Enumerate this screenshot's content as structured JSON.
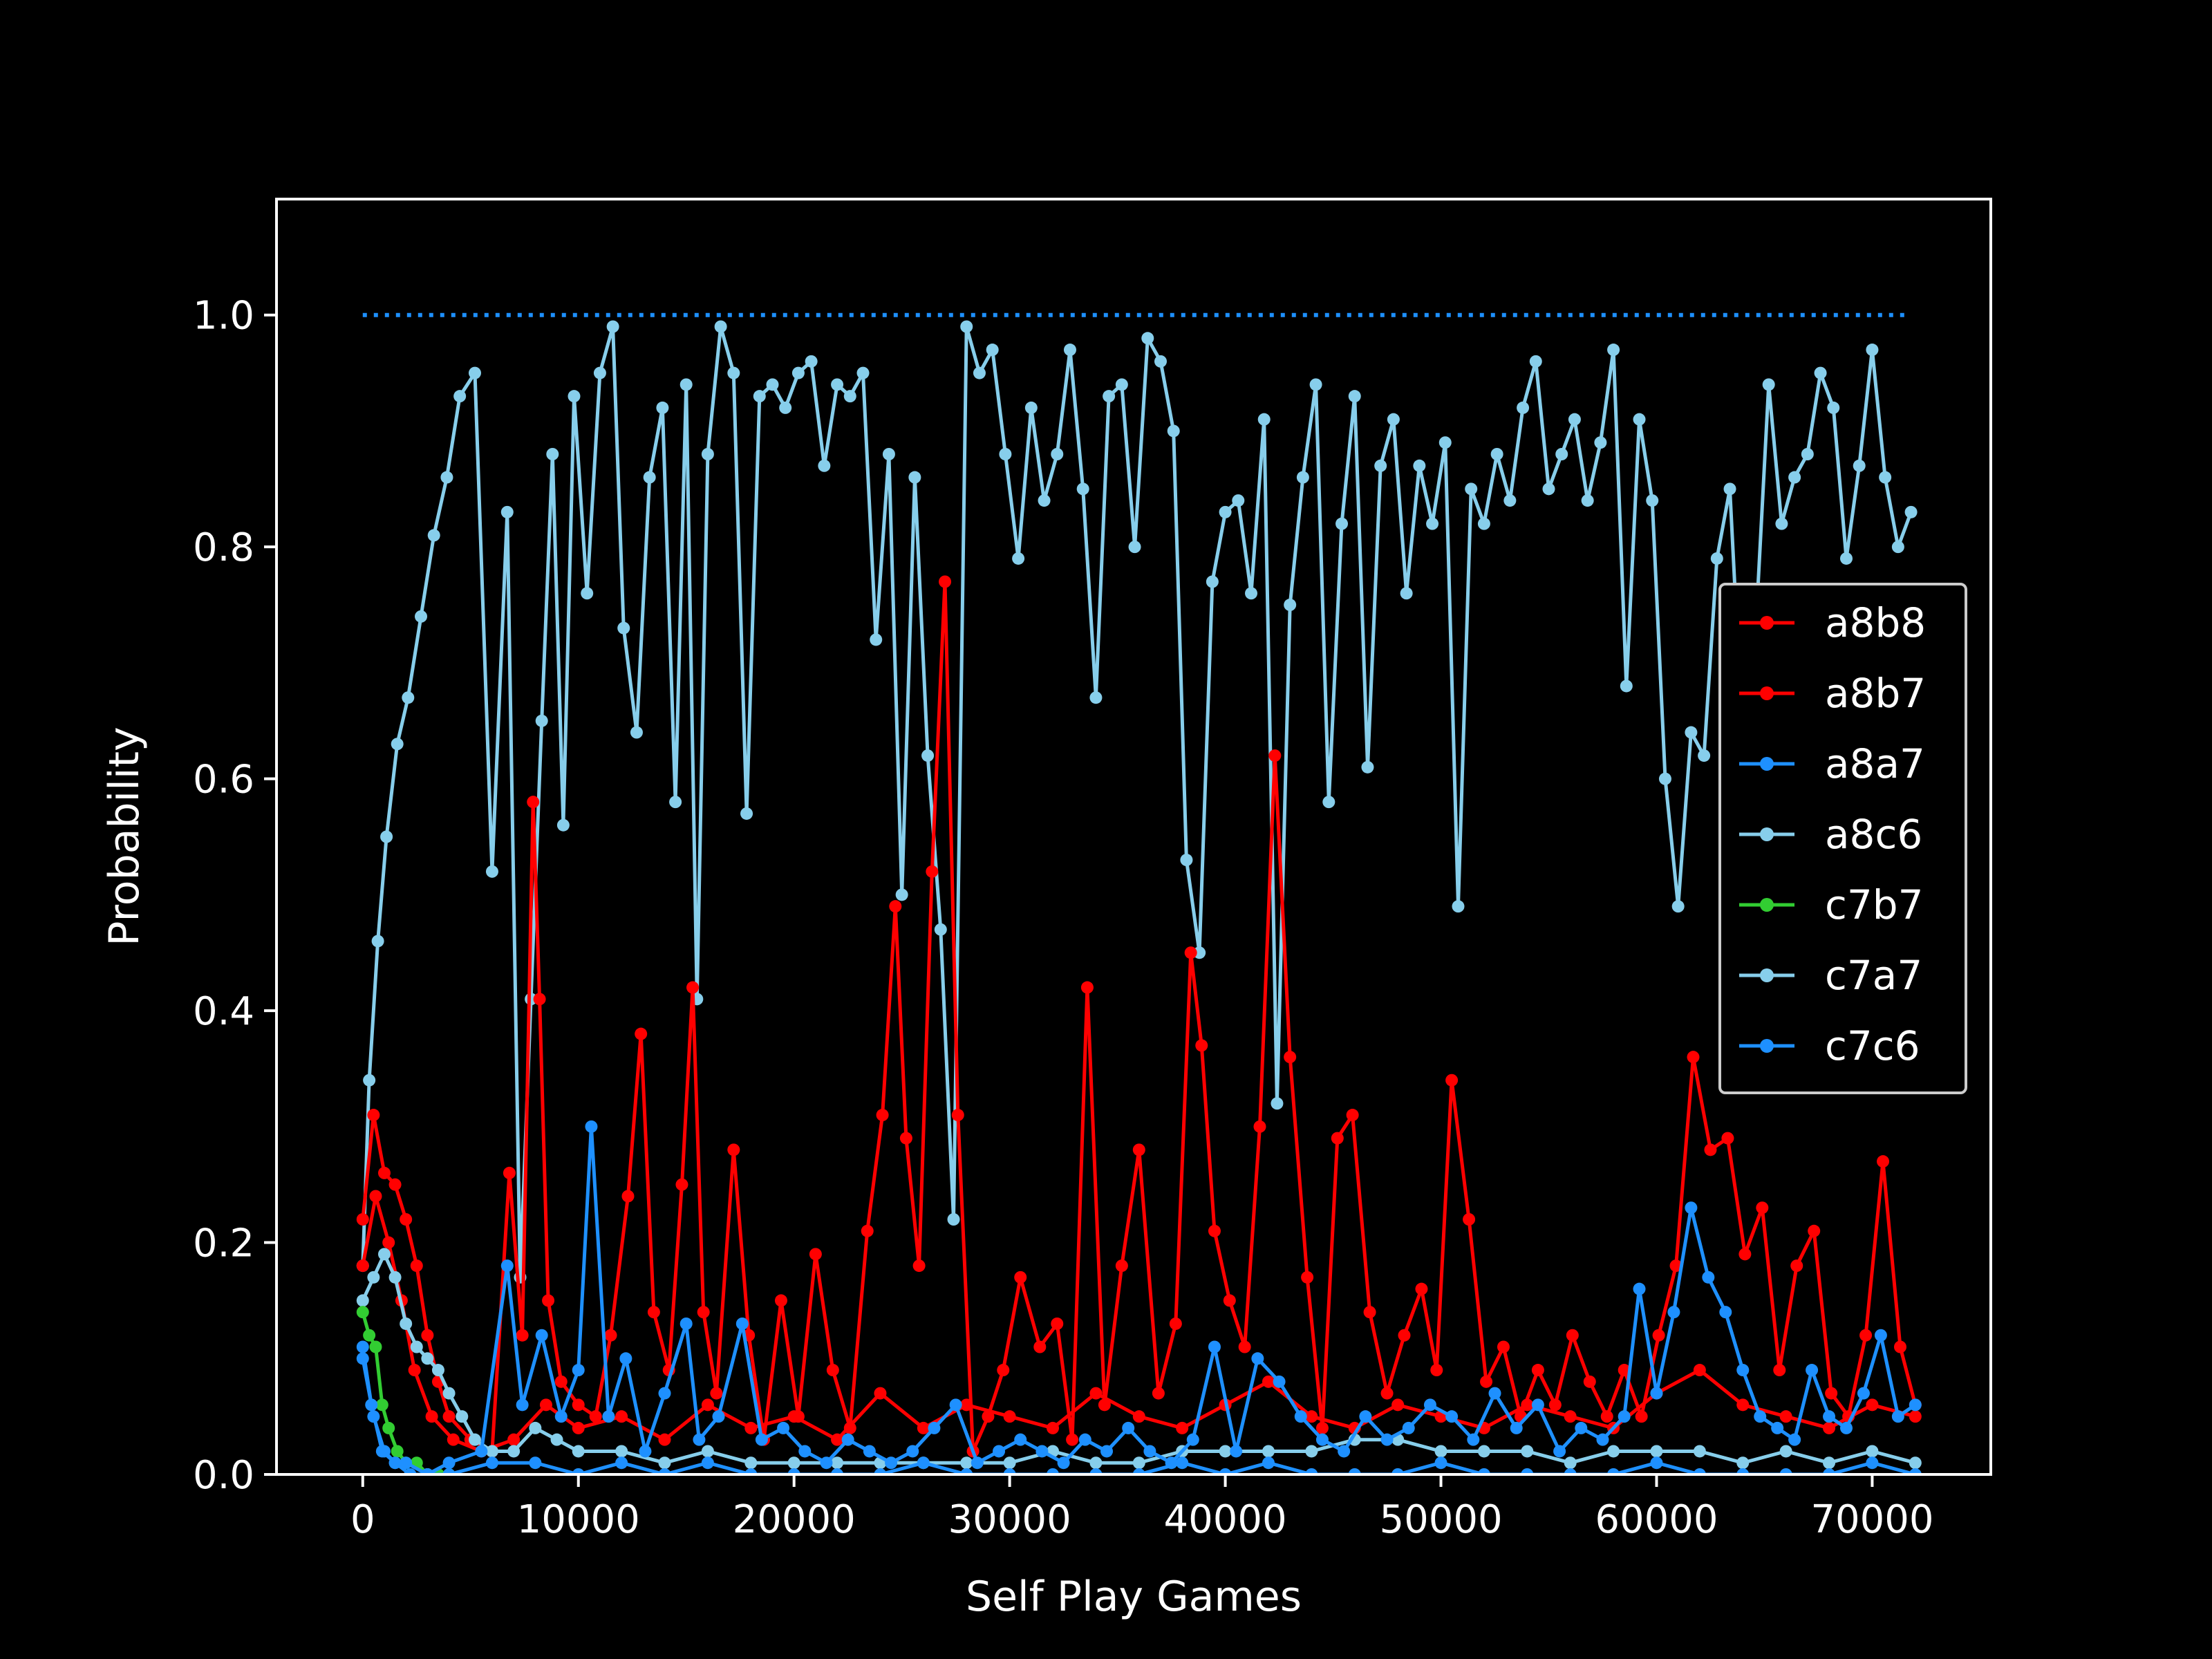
{
  "chart_data": {
    "type": "line",
    "title": "",
    "xlabel": "Self Play Games",
    "ylabel": "Probability",
    "xlim": [
      -4000,
      75500
    ],
    "ylim": [
      0,
      1.1
    ],
    "xticks": [
      0,
      10000,
      20000,
      30000,
      40000,
      50000,
      60000,
      70000
    ],
    "yticks": [
      0.0,
      0.2,
      0.4,
      0.6,
      0.8,
      1.0
    ],
    "xtick_labels": [
      "0",
      "10000",
      "20000",
      "30000",
      "40000",
      "50000",
      "60000",
      "70000"
    ],
    "ytick_labels": [
      "0.0",
      "0.2",
      "0.4",
      "0.6",
      "0.8",
      "1.0"
    ],
    "reference_line": {
      "y": 1.0,
      "x_range": [
        0,
        71500
      ],
      "style": "dotted",
      "color": "#1e90ff"
    },
    "background": "#000000",
    "foreground": "#ffffff",
    "legend": {
      "placement": "center-right",
      "entries": [
        "a8b8",
        "a8b7",
        "a8a7",
        "a8c6",
        "c7b7",
        "c7a7",
        "c7c6"
      ]
    },
    "series": [
      {
        "name": "a8b8",
        "color": "#ff0000",
        "x": [
          0,
          500,
          1000,
          1500,
          2000,
          2500,
          3000,
          3500,
          4000,
          5000,
          6000,
          6800,
          7400,
          7900,
          8200,
          8600,
          9200,
          10000,
          10800,
          11500,
          12300,
          12900,
          13500,
          14200,
          14800,
          15300,
          15800,
          16400,
          17200,
          17900,
          18600,
          19400,
          20200,
          21000,
          21800,
          22600,
          23400,
          24100,
          24700,
          25200,
          25800,
          26400,
          27000,
          27600,
          28300,
          29000,
          29700,
          30500,
          31400,
          32200,
          32900,
          33600,
          34400,
          35200,
          36000,
          36900,
          37700,
          38400,
          38900,
          39500,
          40200,
          40900,
          41600,
          42300,
          43000,
          43800,
          44500,
          45200,
          45900,
          46700,
          47500,
          48300,
          49100,
          49800,
          50500,
          51300,
          52100,
          52900,
          53700,
          54500,
          55300,
          56100,
          56900,
          57700,
          58500,
          59300,
          60100,
          60900,
          61700,
          62500,
          63300,
          64100,
          64900,
          65700,
          66500,
          67300,
          68100,
          68900,
          69700,
          70500,
          71300,
          72000
        ],
        "y": [
          0.22,
          0.31,
          0.26,
          0.25,
          0.22,
          0.18,
          0.12,
          0.08,
          0.05,
          0.03,
          0.02,
          0.26,
          0.12,
          0.58,
          0.41,
          0.15,
          0.08,
          0.06,
          0.05,
          0.12,
          0.24,
          0.38,
          0.14,
          0.09,
          0.25,
          0.42,
          0.14,
          0.07,
          0.28,
          0.12,
          0.03,
          0.15,
          0.05,
          0.19,
          0.09,
          0.04,
          0.21,
          0.31,
          0.49,
          0.29,
          0.18,
          0.52,
          0.77,
          0.31,
          0.02,
          0.05,
          0.09,
          0.17,
          0.11,
          0.13,
          0.03,
          0.42,
          0.06,
          0.18,
          0.28,
          0.07,
          0.13,
          0.45,
          0.37,
          0.21,
          0.15,
          0.11,
          0.3,
          0.62,
          0.36,
          0.17,
          0.04,
          0.29,
          0.31,
          0.14,
          0.07,
          0.12,
          0.16,
          0.09,
          0.34,
          0.22,
          0.08,
          0.11,
          0.05,
          0.09,
          0.06,
          0.12,
          0.08,
          0.05,
          0.09,
          0.05,
          0.12,
          0.18,
          0.36,
          0.28,
          0.29,
          0.19,
          0.23,
          0.09,
          0.18,
          0.21,
          0.07,
          0.05,
          0.12,
          0.27,
          0.11,
          0.06
        ]
      },
      {
        "name": "a8b7",
        "color": "#ff0000",
        "x": [
          0,
          600,
          1200,
          1800,
          2400,
          3200,
          4200,
          5500,
          7000,
          8500,
          10000,
          12000,
          14000,
          16000,
          18000,
          20000,
          22000,
          24000,
          26000,
          28000,
          30000,
          32000,
          34000,
          36000,
          38000,
          40000,
          42000,
          44000,
          46000,
          48000,
          50000,
          52000,
          54000,
          56000,
          58000,
          60000,
          62000,
          64000,
          66000,
          68000,
          70000,
          72000
        ],
        "y": [
          0.18,
          0.24,
          0.2,
          0.15,
          0.09,
          0.05,
          0.03,
          0.02,
          0.03,
          0.06,
          0.04,
          0.05,
          0.03,
          0.06,
          0.04,
          0.05,
          0.03,
          0.07,
          0.04,
          0.06,
          0.05,
          0.04,
          0.07,
          0.05,
          0.04,
          0.06,
          0.08,
          0.05,
          0.04,
          0.06,
          0.05,
          0.04,
          0.06,
          0.05,
          0.04,
          0.07,
          0.09,
          0.06,
          0.05,
          0.04,
          0.06,
          0.05
        ]
      },
      {
        "name": "a8a7",
        "color": "#1e90ff",
        "x": [
          0,
          400,
          900,
          1500,
          2200,
          3000,
          4000,
          5500,
          6700,
          7400,
          8300,
          9200,
          10000,
          10600,
          11400,
          12200,
          13100,
          14000,
          15000,
          15600,
          16500,
          17600,
          18500,
          19500,
          20500,
          21500,
          22500,
          23500,
          24500,
          25500,
          26500,
          27500,
          28500,
          29500,
          30500,
          31500,
          32500,
          33500,
          34500,
          35500,
          36500,
          37500,
          38500,
          39500,
          40500,
          41500,
          42500,
          43500,
          44500,
          45500,
          46500,
          47500,
          48500,
          49500,
          50500,
          51500,
          52500,
          53500,
          54500,
          55500,
          56500,
          57500,
          58500,
          59200,
          60000,
          60800,
          61600,
          62400,
          63200,
          64000,
          64800,
          65600,
          66400,
          67200,
          68000,
          68800,
          69600,
          70400,
          71200,
          72000
        ],
        "y": [
          0.11,
          0.06,
          0.02,
          0.01,
          0.0,
          0.0,
          0.01,
          0.02,
          0.18,
          0.06,
          0.12,
          0.05,
          0.09,
          0.3,
          0.05,
          0.1,
          0.02,
          0.07,
          0.13,
          0.03,
          0.05,
          0.13,
          0.03,
          0.04,
          0.02,
          0.01,
          0.03,
          0.02,
          0.01,
          0.02,
          0.04,
          0.06,
          0.01,
          0.02,
          0.03,
          0.02,
          0.01,
          0.03,
          0.02,
          0.04,
          0.02,
          0.01,
          0.03,
          0.11,
          0.02,
          0.1,
          0.08,
          0.05,
          0.03,
          0.02,
          0.05,
          0.03,
          0.04,
          0.06,
          0.05,
          0.03,
          0.07,
          0.04,
          0.06,
          0.02,
          0.04,
          0.03,
          0.05,
          0.16,
          0.07,
          0.14,
          0.23,
          0.17,
          0.14,
          0.09,
          0.05,
          0.04,
          0.03,
          0.09,
          0.05,
          0.04,
          0.07,
          0.12,
          0.05,
          0.06
        ]
      },
      {
        "name": "a8c6",
        "color": "#87ceeb",
        "x": [
          0,
          300,
          700,
          1100,
          1600,
          2100,
          2700,
          3300,
          3900,
          4500,
          5200,
          6000,
          6700,
          7300,
          7800,
          8300,
          8800,
          9300,
          9800,
          10400,
          11000,
          11600,
          12100,
          12700,
          13300,
          13900,
          14500,
          15000,
          15500,
          16000,
          16600,
          17200,
          17800,
          18400,
          19000,
          19600,
          20200,
          20800,
          21400,
          22000,
          22600,
          23200,
          23800,
          24400,
          25000,
          25600,
          26200,
          26800,
          27400,
          28000,
          28600,
          29200,
          29800,
          30400,
          31000,
          31600,
          32200,
          32800,
          33400,
          34000,
          34600,
          35200,
          35800,
          36400,
          37000,
          37600,
          38200,
          38800,
          39400,
          40000,
          40600,
          41200,
          41800,
          42400,
          43000,
          43600,
          44200,
          44800,
          45400,
          46000,
          46600,
          47200,
          47800,
          48400,
          49000,
          49600,
          50200,
          50800,
          51400,
          52000,
          52600,
          53200,
          53800,
          54400,
          55000,
          55600,
          56200,
          56800,
          57400,
          58000,
          58600,
          59200,
          59800,
          60400,
          61000,
          61600,
          62200,
          62800,
          63400,
          64000,
          64600,
          65200,
          65800,
          66400,
          67000,
          67600,
          68200,
          68800,
          69400,
          70000,
          70600,
          71200,
          71800
        ],
        "y": [
          0.18,
          0.34,
          0.46,
          0.55,
          0.63,
          0.67,
          0.74,
          0.81,
          0.86,
          0.93,
          0.95,
          0.52,
          0.83,
          0.17,
          0.41,
          0.65,
          0.88,
          0.56,
          0.93,
          0.76,
          0.95,
          0.99,
          0.73,
          0.64,
          0.86,
          0.92,
          0.58,
          0.94,
          0.41,
          0.88,
          0.99,
          0.95,
          0.57,
          0.93,
          0.94,
          0.92,
          0.95,
          0.96,
          0.87,
          0.94,
          0.93,
          0.95,
          0.72,
          0.88,
          0.5,
          0.86,
          0.62,
          0.47,
          0.22,
          0.99,
          0.95,
          0.97,
          0.88,
          0.79,
          0.92,
          0.84,
          0.88,
          0.97,
          0.85,
          0.67,
          0.93,
          0.94,
          0.8,
          0.98,
          0.96,
          0.9,
          0.53,
          0.45,
          0.77,
          0.83,
          0.84,
          0.76,
          0.91,
          0.32,
          0.75,
          0.86,
          0.94,
          0.58,
          0.82,
          0.93,
          0.61,
          0.87,
          0.91,
          0.76,
          0.87,
          0.82,
          0.89,
          0.49,
          0.85,
          0.82,
          0.88,
          0.84,
          0.92,
          0.96,
          0.85,
          0.88,
          0.91,
          0.84,
          0.89,
          0.97,
          0.68,
          0.91,
          0.84,
          0.6,
          0.49,
          0.64,
          0.62,
          0.79,
          0.85,
          0.63,
          0.73,
          0.94,
          0.82,
          0.86,
          0.88,
          0.95,
          0.92,
          0.79,
          0.87,
          0.97,
          0.86,
          0.8,
          0.83
        ]
      },
      {
        "name": "c7b7",
        "color": "#32cd32",
        "x": [
          0,
          300,
          600,
          900,
          1200,
          1600,
          2000,
          2500,
          3000,
          3500,
          4000
        ],
        "y": [
          0.14,
          0.12,
          0.11,
          0.06,
          0.04,
          0.02,
          0.01,
          0.01,
          0.0,
          0.0,
          0.0
        ]
      },
      {
        "name": "c7a7",
        "color": "#87ceeb",
        "x": [
          0,
          500,
          1000,
          1500,
          2000,
          2500,
          3000,
          3500,
          4000,
          4600,
          5200,
          6000,
          7000,
          8000,
          9000,
          10000,
          12000,
          14000,
          16000,
          18000,
          20000,
          22000,
          24000,
          26000,
          28000,
          30000,
          32000,
          34000,
          36000,
          38000,
          40000,
          42000,
          44000,
          46000,
          48000,
          50000,
          52000,
          54000,
          56000,
          58000,
          60000,
          62000,
          64000,
          66000,
          68000,
          70000,
          72000
        ],
        "y": [
          0.15,
          0.17,
          0.19,
          0.17,
          0.13,
          0.11,
          0.1,
          0.09,
          0.07,
          0.05,
          0.03,
          0.02,
          0.02,
          0.04,
          0.03,
          0.02,
          0.02,
          0.01,
          0.02,
          0.01,
          0.01,
          0.01,
          0.01,
          0.01,
          0.01,
          0.01,
          0.02,
          0.01,
          0.01,
          0.02,
          0.02,
          0.02,
          0.02,
          0.03,
          0.03,
          0.02,
          0.02,
          0.02,
          0.01,
          0.02,
          0.02,
          0.02,
          0.01,
          0.02,
          0.01,
          0.02,
          0.01
        ]
      },
      {
        "name": "c7c6",
        "color": "#1e90ff",
        "x": [
          0,
          500,
          1000,
          1500,
          2000,
          3000,
          4000,
          6000,
          8000,
          10000,
          12000,
          14000,
          16000,
          18000,
          20000,
          22000,
          24000,
          26000,
          28000,
          30000,
          32000,
          34000,
          36000,
          38000,
          40000,
          42000,
          44000,
          46000,
          48000,
          50000,
          52000,
          54000,
          56000,
          58000,
          60000,
          62000,
          64000,
          66000,
          68000,
          70000,
          72000
        ],
        "y": [
          0.1,
          0.05,
          0.02,
          0.01,
          0.01,
          0.0,
          0.0,
          0.01,
          0.01,
          0.0,
          0.01,
          0.0,
          0.01,
          0.0,
          0.0,
          0.0,
          0.0,
          0.01,
          0.0,
          0.0,
          0.0,
          0.0,
          0.0,
          0.01,
          0.0,
          0.01,
          0.0,
          0.0,
          0.0,
          0.01,
          0.0,
          0.0,
          0.0,
          0.0,
          0.01,
          0.0,
          0.0,
          0.0,
          0.0,
          0.01,
          0.0
        ]
      }
    ]
  }
}
